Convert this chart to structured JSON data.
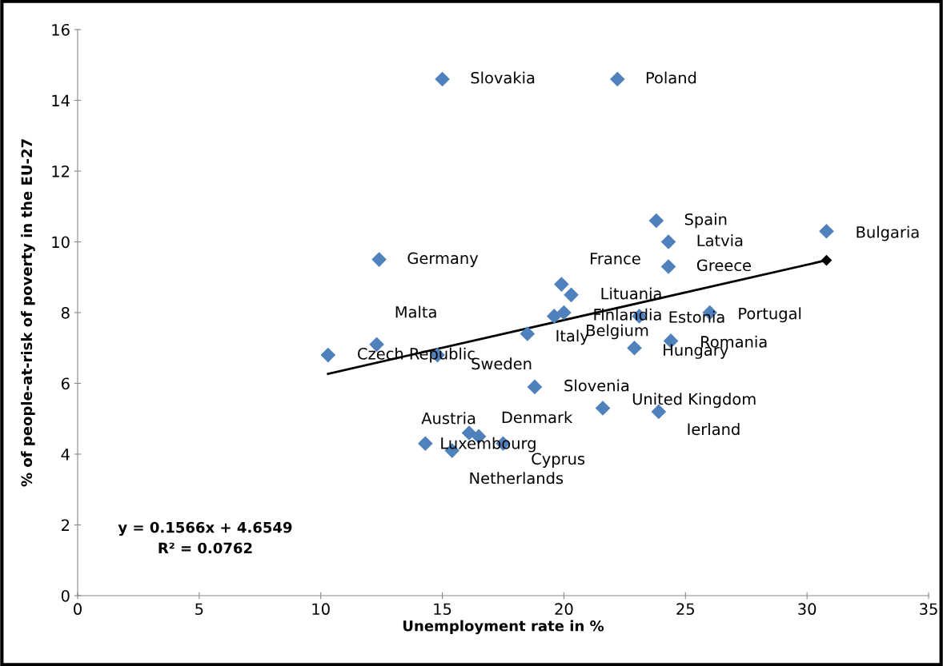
{
  "chart_data": {
    "type": "scatter",
    "xlabel": "Unemployment rate in %",
    "ylabel": "% of people-at-risk of poverty in the EU-27",
    "xlim": [
      0,
      35
    ],
    "xticks": [
      0,
      5,
      10,
      15,
      20,
      25,
      30,
      35
    ],
    "ylim": [
      0,
      16
    ],
    "yticks": [
      0,
      2,
      4,
      6,
      8,
      10,
      12,
      14,
      16
    ],
    "grid": false,
    "legend": false,
    "marker": "diamond",
    "series": [
      {
        "color": "#4f81bd",
        "x": [
          10.3,
          12.3,
          12.4,
          14.8,
          15.0,
          22.2,
          14.3,
          15.4,
          16.1,
          16.5,
          17.5,
          18.8,
          21.6,
          18.5,
          19.6,
          20.0,
          19.9,
          20.3,
          23.8,
          24.3,
          24.3,
          30.8,
          23.1,
          26.0,
          24.4,
          22.9,
          23.9
        ],
        "values": [
          6.8,
          7.1,
          9.5,
          6.8,
          14.6,
          14.6,
          4.3,
          4.1,
          4.6,
          4.5,
          4.3,
          5.9,
          5.3,
          7.4,
          7.9,
          8.0,
          8.8,
          8.5,
          10.6,
          10.0,
          9.3,
          10.3,
          7.9,
          8.0,
          7.2,
          7.0,
          5.2
        ]
      },
      {
        "type": "line",
        "color": "#000000",
        "x": [
          10.3,
          30.8
        ],
        "values": [
          6.27,
          9.48
        ]
      }
    ],
    "annotations": [
      {
        "text": "Czech Republic",
        "x": 10.3,
        "y": 6.8
      },
      {
        "text": "Malta",
        "x": 12.3,
        "y": 7.1
      },
      {
        "text": "Germany",
        "x": 12.4,
        "y": 9.5
      },
      {
        "text": "Sweden",
        "x": 14.8,
        "y": 6.8
      },
      {
        "text": "Slovakia",
        "x": 15.0,
        "y": 14.6
      },
      {
        "text": "Poland",
        "x": 22.2,
        "y": 14.6
      },
      {
        "text": "Luxembourg",
        "x": 14.3,
        "y": 4.3
      },
      {
        "text": "Netherlands",
        "x": 15.4,
        "y": 4.1
      },
      {
        "text": "Austria",
        "x": 16.1,
        "y": 4.6
      },
      {
        "text": "Denmark",
        "x": 16.5,
        "y": 4.5
      },
      {
        "text": "Cyprus",
        "x": 17.5,
        "y": 4.3
      },
      {
        "text": "Slovenia",
        "x": 18.8,
        "y": 5.9
      },
      {
        "text": "United Kingdom",
        "x": 21.6,
        "y": 5.3
      },
      {
        "text": "Italy",
        "x": 18.5,
        "y": 7.4
      },
      {
        "text": "Belgium",
        "x": 19.6,
        "y": 7.9
      },
      {
        "text": "Finlandia",
        "x": 20.0,
        "y": 8.0
      },
      {
        "text": "France",
        "x": 19.9,
        "y": 8.8
      },
      {
        "text": "Lituania",
        "x": 20.3,
        "y": 8.5
      },
      {
        "text": "Spain",
        "x": 23.8,
        "y": 10.6
      },
      {
        "text": "Latvia",
        "x": 24.3,
        "y": 10.0
      },
      {
        "text": "Greece",
        "x": 24.3,
        "y": 9.3
      },
      {
        "text": "Bulgaria",
        "x": 30.8,
        "y": 10.3
      },
      {
        "text": "Estonia",
        "x": 23.1,
        "y": 7.9
      },
      {
        "text": "Portugal",
        "x": 26.0,
        "y": 8.0
      },
      {
        "text": "Romania",
        "x": 24.4,
        "y": 7.2
      },
      {
        "text": "Hungary",
        "x": 22.9,
        "y": 7.0
      },
      {
        "text": "Ierland",
        "x": 23.9,
        "y": 5.2
      },
      "y = 0.1566x + 4.6549\nR² = 0.0762"
    ]
  }
}
